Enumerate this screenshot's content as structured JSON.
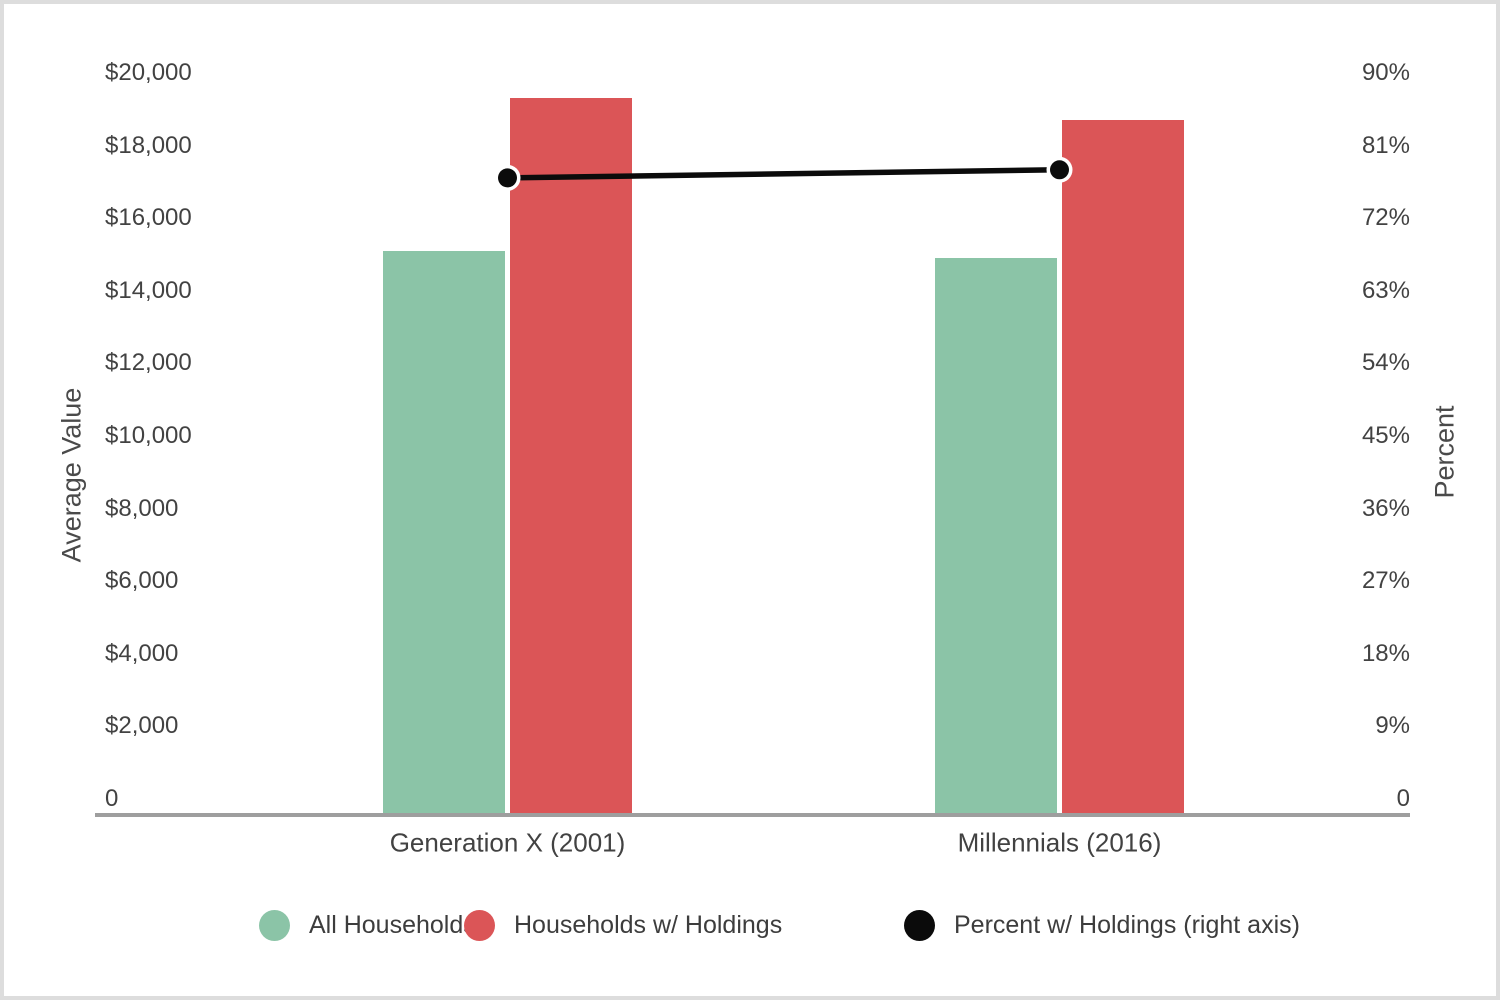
{
  "colors": {
    "background": "#ffffff",
    "border": "#dddddd",
    "axis_line": "#9e9e9e",
    "text": "#424242",
    "all_households": "#8bc4a7",
    "households_w_holdings": "#db5557",
    "percent_line": "#0b0b0b"
  },
  "chart_data": {
    "type": "combo-bar-line",
    "categories": [
      "Generation X (2001)",
      "Millennials (2016)"
    ],
    "series": [
      {
        "name": "All Households",
        "type": "bar",
        "axis": "left",
        "color": "#8bc4a7",
        "values": [
          15100,
          14900
        ]
      },
      {
        "name": "Households w/ Holdings",
        "type": "bar",
        "axis": "left",
        "color": "#db5557",
        "values": [
          19300,
          18700
        ]
      },
      {
        "name": "Percent w/ Holdings (right axis)",
        "type": "line",
        "axis": "right",
        "color": "#0b0b0b",
        "values": [
          77,
          78
        ]
      }
    ],
    "left_axis": {
      "title": "Average Value",
      "tick_labels": [
        "$20,000",
        "$18,000",
        "$16,000",
        "$14,000",
        "$12,000",
        "$10,000",
        "$8,000",
        "$6,000",
        "$4,000",
        "$2,000",
        "0"
      ],
      "ylim": [
        0,
        20000
      ],
      "tick_step": 2000
    },
    "right_axis": {
      "title": "Percent",
      "tick_labels": [
        "90%",
        "81%",
        "72%",
        "63%",
        "54%",
        "45%",
        "36%",
        "27%",
        "18%",
        "9%",
        "0"
      ],
      "ylim": [
        0,
        90
      ],
      "tick_step": 9
    },
    "legend_position": "bottom",
    "grid": false
  }
}
